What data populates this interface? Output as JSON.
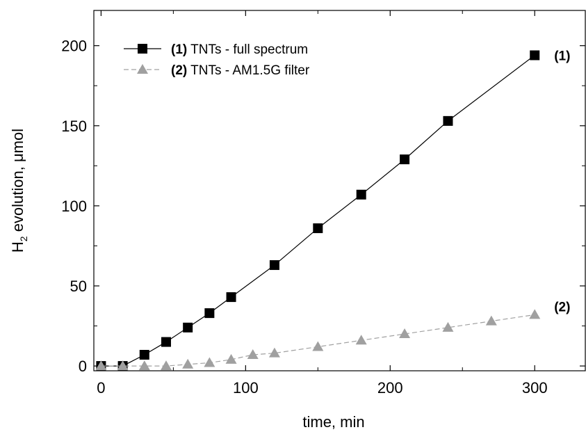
{
  "chart_data": {
    "type": "line",
    "xlabel": "time, min",
    "ylabel": {
      "main": "H",
      "sub": "2",
      "rest": " evolution, μmol"
    },
    "xlim": [
      -5,
      335
    ],
    "ylim": [
      -3,
      222
    ],
    "x_ticks": [
      0,
      100,
      200,
      300
    ],
    "x_tick_labels": [
      "0",
      "100",
      "200",
      "300"
    ],
    "y_ticks": [
      0,
      50,
      100,
      150,
      200
    ],
    "y_tick_labels": [
      "0",
      "50",
      "100",
      "150",
      "200"
    ],
    "grid": false,
    "legend_position": "top-left",
    "series": [
      {
        "name_num": "(1)",
        "name": " TNTs - full spectrum",
        "end_label": "(1)",
        "color": "#000000",
        "line_style": "solid",
        "marker": "square",
        "x": [
          0,
          15,
          30,
          45,
          60,
          75,
          90,
          120,
          150,
          180,
          210,
          240,
          300
        ],
        "y": [
          0,
          0,
          7,
          15,
          24,
          33,
          43,
          63,
          86,
          107,
          129,
          153,
          194
        ]
      },
      {
        "name_num": "(2)",
        "name": " TNTs - AM1.5G filter",
        "end_label": "(2)",
        "color": "#a0a0a0",
        "line_style": "dashed",
        "marker": "triangle",
        "x": [
          0,
          15,
          30,
          45,
          60,
          75,
          90,
          105,
          120,
          150,
          180,
          210,
          240,
          270,
          300
        ],
        "y": [
          0,
          0,
          0,
          0,
          1,
          2,
          4,
          7,
          8,
          12,
          16,
          20,
          24,
          28,
          32
        ]
      }
    ]
  }
}
